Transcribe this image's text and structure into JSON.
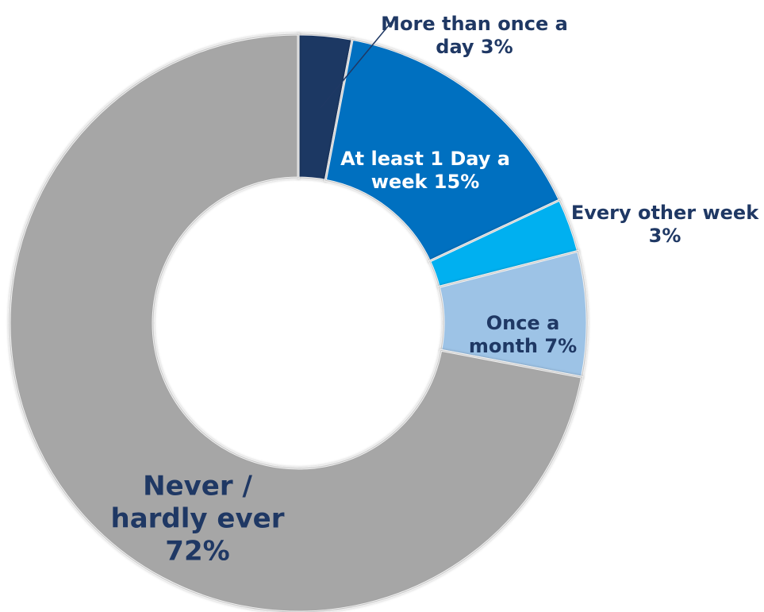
{
  "chart_data": {
    "type": "pie",
    "title": "",
    "categories": [
      "More than once a day",
      "At least 1 Day a week",
      "Every other week",
      "Once a month",
      "Never / hardly ever"
    ],
    "values": [
      3,
      15,
      3,
      7,
      72
    ],
    "colors": [
      "#1f3864",
      "#0070c0",
      "#00b0f0",
      "#9dc3e6",
      "#a6a6a6"
    ],
    "label_colors": [
      "#1f3864",
      "#ffffff",
      "#1f3864",
      "#1f3864",
      "#1f3864"
    ],
    "labels": [
      {
        "lines": [
          "More than once a",
          "day 3%"
        ]
      },
      {
        "lines": [
          "At least 1 Day a",
          "week 15%"
        ]
      },
      {
        "lines": [
          "Every other week",
          "3%"
        ]
      },
      {
        "lines": [
          "Once a",
          "month 7%"
        ]
      },
      {
        "lines": [
          "Never /",
          "hardly ever",
          "72%"
        ]
      }
    ],
    "start_angle": "12 o'clock",
    "direction": "clockwise",
    "legend": "none",
    "data_labels": "on slices, with leader line for smallest slice"
  }
}
